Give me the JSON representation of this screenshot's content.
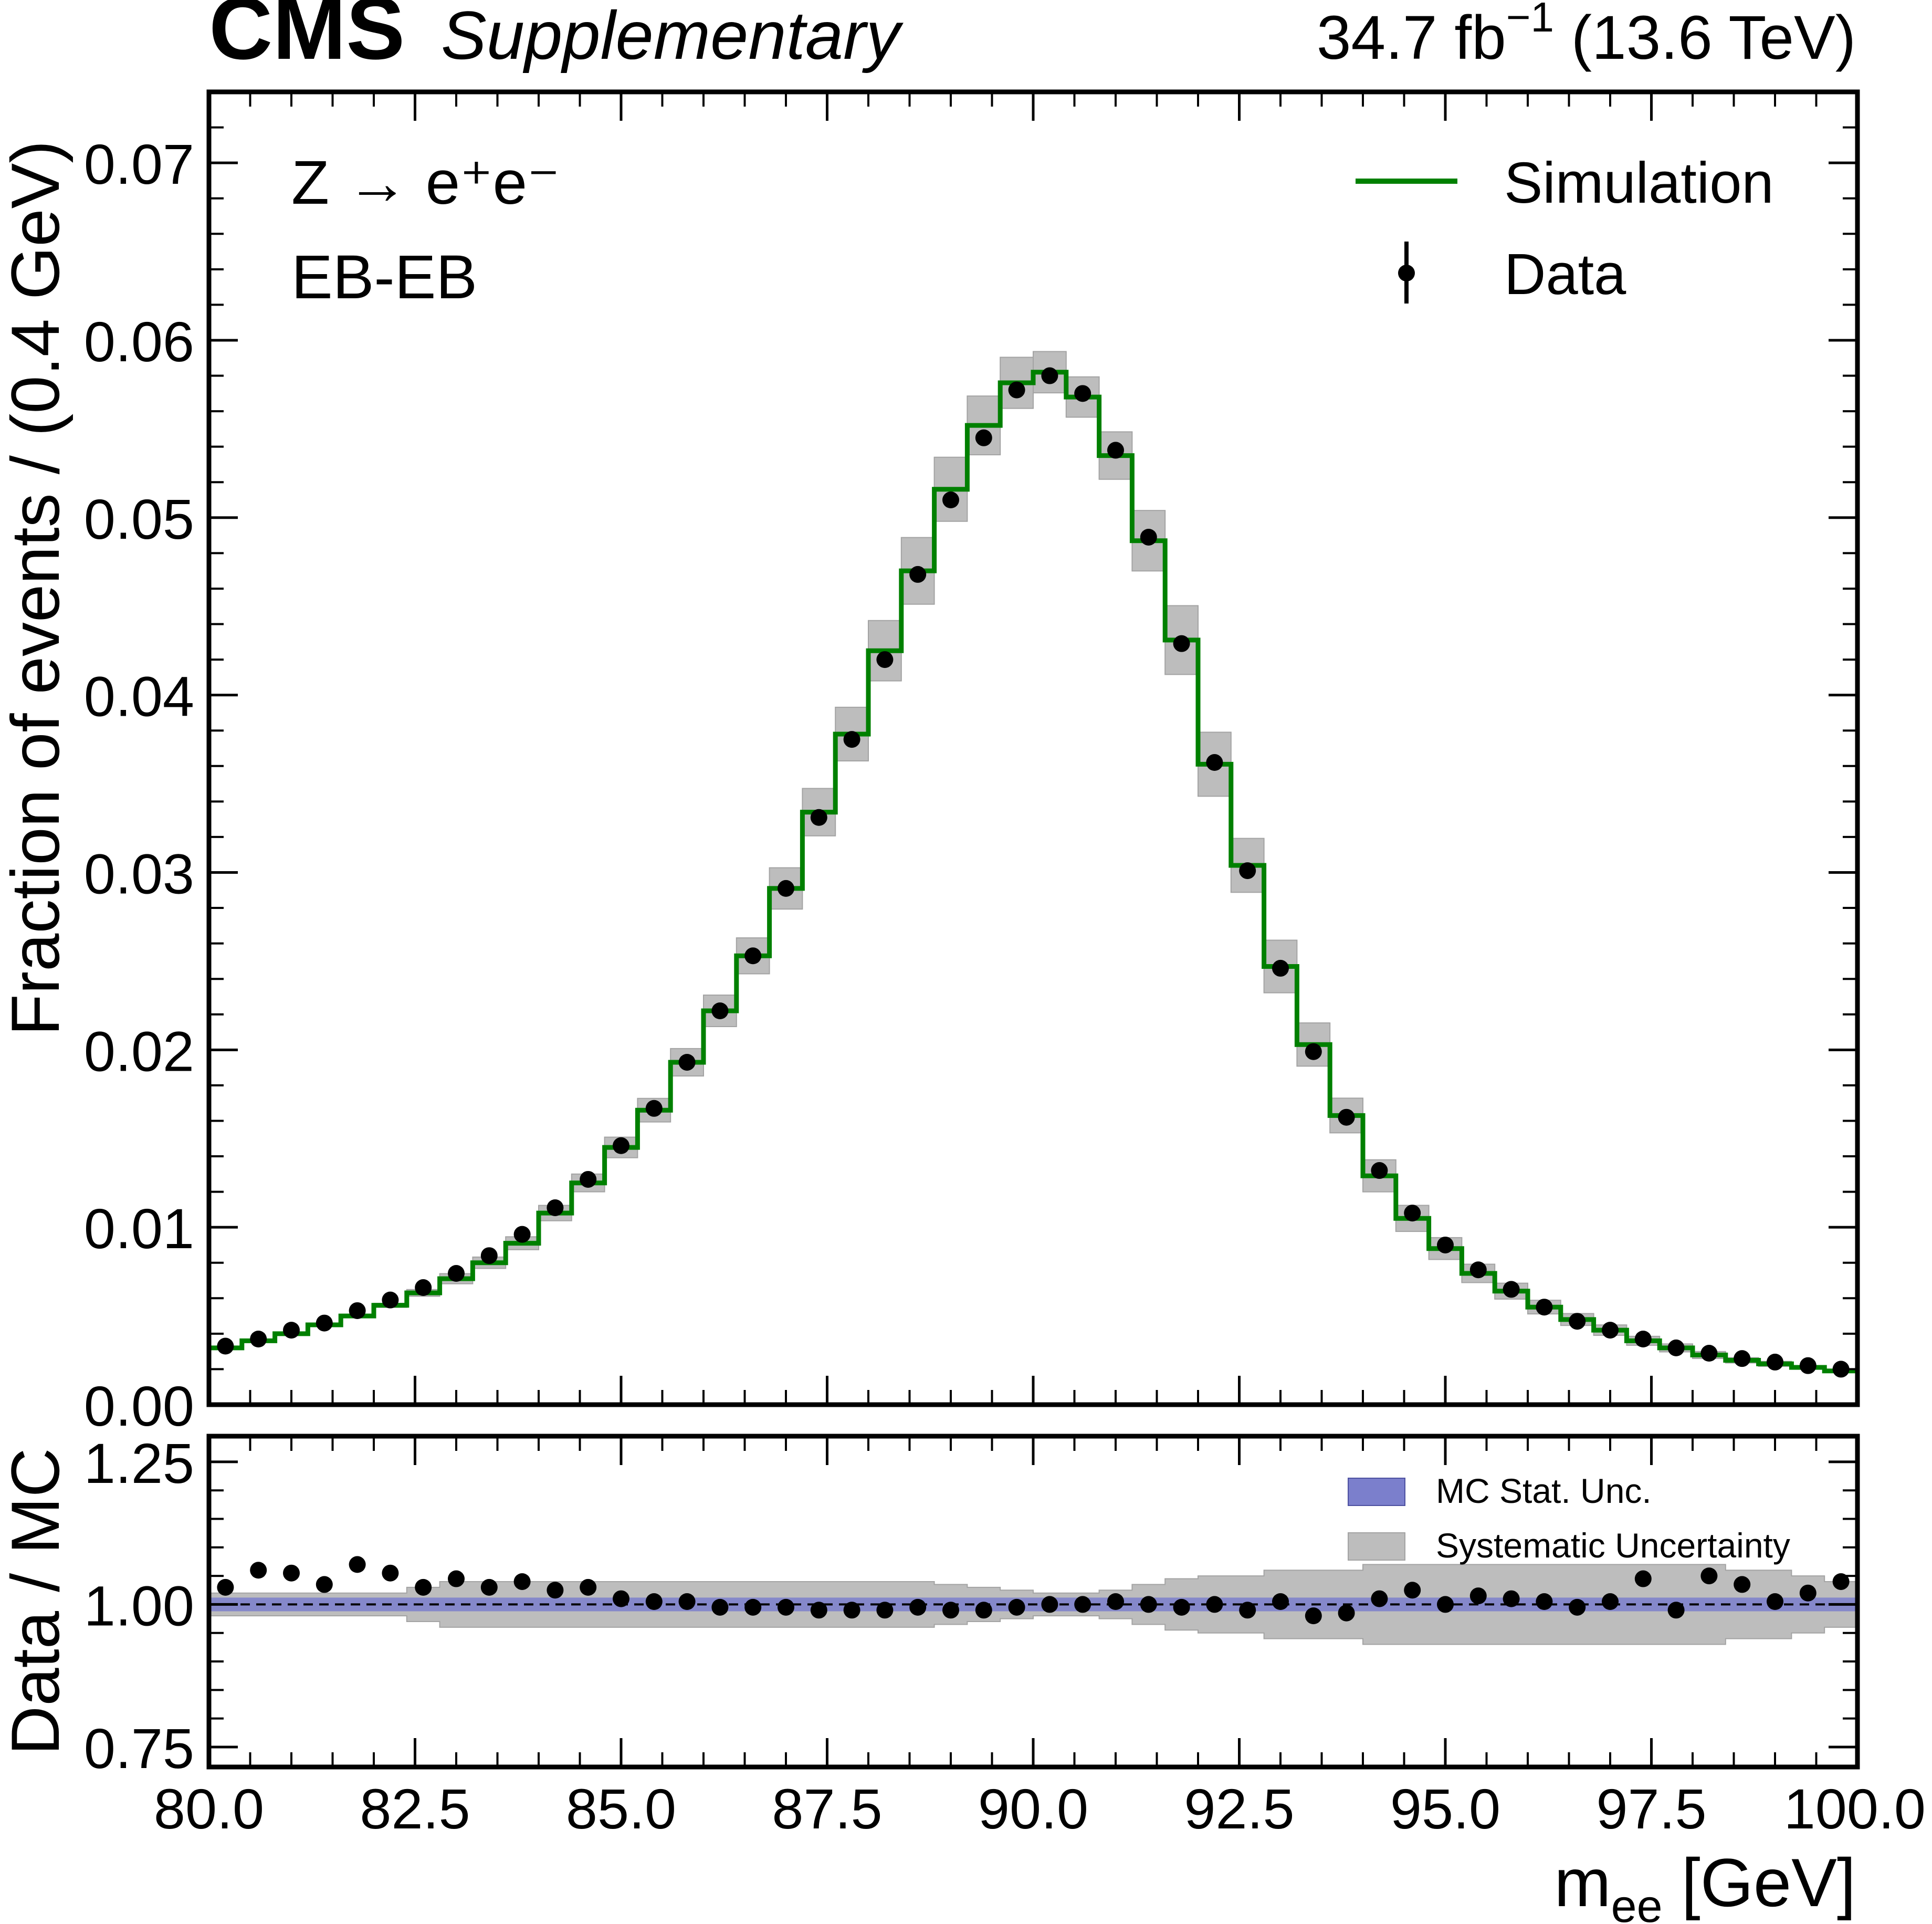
{
  "header": {
    "experiment": "CMS",
    "status": "Supplementary",
    "lumi_text": "34.7 fb",
    "lumi_exp": "−1",
    "energy_text": " (13.6 TeV)"
  },
  "annotations": {
    "process": "Z → e⁺e⁻",
    "category": "EB-EB"
  },
  "legend_top": [
    {
      "label": "Simulation",
      "color": "#008000",
      "kind": "line"
    },
    {
      "label": "Data",
      "color": "#000000",
      "kind": "marker"
    }
  ],
  "legend_bottom": [
    {
      "label": "MC Stat. Unc.",
      "color": "#7b7fcc"
    },
    {
      "label": "Systematic Uncertainty",
      "color": "#bdbdbd"
    }
  ],
  "chart_data": [
    {
      "type": "histogram",
      "panel": "main",
      "ylabel": "Fraction of events / (0.4 GeV)",
      "xlim": [
        80,
        100
      ],
      "ylim": [
        0,
        0.074
      ],
      "yticks": [
        "0.00",
        "0.01",
        "0.02",
        "0.03",
        "0.04",
        "0.05",
        "0.06",
        "0.07"
      ],
      "bin_width": 0.4,
      "bin_edges_start": 80,
      "series": [
        {
          "name": "Simulation",
          "color": "#008000",
          "values": [
            0.0032,
            0.0036,
            0.004,
            0.0045,
            0.005,
            0.0056,
            0.0063,
            0.0071,
            0.008,
            0.0091,
            0.0108,
            0.0125,
            0.0145,
            0.0166,
            0.0193,
            0.0222,
            0.0253,
            0.0291,
            0.0334,
            0.0378,
            0.0425,
            0.047,
            0.0516,
            0.0552,
            0.0576,
            0.0582,
            0.0568,
            0.0535,
            0.0487,
            0.0431,
            0.0361,
            0.0304,
            0.0247,
            0.0203,
            0.0163,
            0.0129,
            0.0105,
            0.0088,
            0.0074,
            0.0064,
            0.0055,
            0.0048,
            0.0042,
            0.0036,
            0.0032,
            0.0028,
            0.0025,
            0.0023,
            0.0021,
            0.0019
          ],
          "syst_rel": [
            0.02,
            0.02,
            0.02,
            0.02,
            0.02,
            0.02,
            0.03,
            0.04,
            0.04,
            0.04,
            0.04,
            0.04,
            0.04,
            0.04,
            0.04,
            0.04,
            0.04,
            0.04,
            0.04,
            0.04,
            0.04,
            0.04,
            0.035,
            0.03,
            0.025,
            0.02,
            0.02,
            0.025,
            0.035,
            0.045,
            0.05,
            0.05,
            0.06,
            0.06,
            0.06,
            0.07,
            0.07,
            0.07,
            0.07,
            0.07,
            0.07,
            0.07,
            0.07,
            0.07,
            0.07,
            0.07,
            0.06,
            0.06,
            0.05,
            0.04
          ]
        },
        {
          "name": "Data",
          "color": "#000000",
          "values": [
            0.0033,
            0.0037,
            0.0042,
            0.0046,
            0.0053,
            0.0059,
            0.0066,
            0.0074,
            0.0084,
            0.0096,
            0.0111,
            0.0127,
            0.0146,
            0.0167,
            0.0193,
            0.0222,
            0.0253,
            0.0291,
            0.0331,
            0.0375,
            0.042,
            0.0468,
            0.051,
            0.0545,
            0.0572,
            0.058,
            0.057,
            0.0538,
            0.0489,
            0.0429,
            0.0362,
            0.0301,
            0.0246,
            0.0199,
            0.0162,
            0.0132,
            0.0108,
            0.009,
            0.0076,
            0.0065,
            0.0055,
            0.0047,
            0.0042,
            0.0037,
            0.0032,
            0.0029,
            0.0026,
            0.0024,
            0.0022,
            0.002
          ]
        }
      ]
    },
    {
      "type": "scatter",
      "panel": "ratio",
      "ylabel": "Data / MC",
      "xlabel": "m",
      "xlabel_sub": "ee",
      "xlabel_unit": " [GeV]",
      "xlim": [
        80,
        100
      ],
      "ylim": [
        0.715,
        1.295
      ],
      "yticks": [
        "0.75",
        "1.00",
        "1.25"
      ],
      "xticks": [
        "80.0",
        "82.5",
        "85.0",
        "87.5",
        "90.0",
        "92.5",
        "95.0",
        "97.5",
        "100.0"
      ],
      "reference_line": 1.0,
      "mc_stat_rel": 0.012,
      "series": [
        {
          "name": "Data / MC",
          "values": [
            1.03,
            1.06,
            1.055,
            1.035,
            1.07,
            1.055,
            1.03,
            1.045,
            1.03,
            1.04,
            1.025,
            1.03,
            1.01,
            1.005,
            1.005,
            0.995,
            0.995,
            0.995,
            0.99,
            0.99,
            0.99,
            0.995,
            0.99,
            0.99,
            0.995,
            1.0,
            1.0,
            1.005,
            1.0,
            0.995,
            1.0,
            0.99,
            1.005,
            0.98,
            0.985,
            1.01,
            1.025,
            1.0,
            1.015,
            1.01,
            1.005,
            0.995,
            1.005,
            1.045,
            0.99,
            1.05,
            1.035,
            1.005,
            1.02,
            1.04
          ]
        }
      ]
    }
  ]
}
